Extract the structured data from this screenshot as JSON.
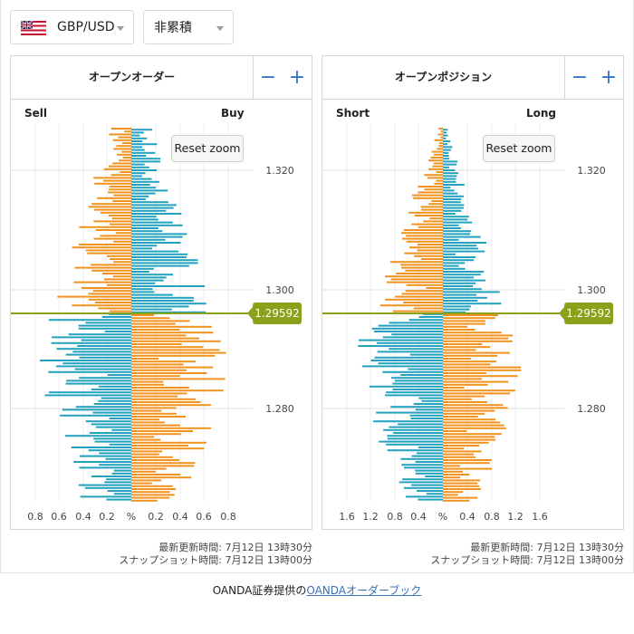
{
  "pair_select": {
    "value": "GBP/USD",
    "flag": "uk-flag-icon"
  },
  "mode_select": {
    "value": "非累積"
  },
  "colors": {
    "orange": "#f0921e",
    "teal": "#22a2bf",
    "price_line": "#8aa11a",
    "control": "#3573c4"
  },
  "orders": {
    "title": "オープンオーダー",
    "left_label": "Sell",
    "right_label": "Buy",
    "minus": "−",
    "plus": "+",
    "reset": "Reset zoom",
    "price_ticks": [
      "1.320",
      "1.300",
      "1.280"
    ],
    "x_ticks": [
      "0.8",
      "0.6",
      "0.4",
      "0.2",
      "%",
      "0.2",
      "0.4",
      "0.6",
      "0.8"
    ],
    "current_price": "1.29592",
    "updated": "最新更新時間: 7月12日 13時30分",
    "snapshot": "スナップショット時間: 7月12日 13時00分"
  },
  "positions": {
    "title": "オープンポジション",
    "left_label": "Short",
    "right_label": "Long",
    "minus": "−",
    "plus": "+",
    "reset": "Reset zoom",
    "price_ticks": [
      "1.320",
      "1.300",
      "1.280"
    ],
    "x_ticks": [
      "1.6",
      "1.2",
      "0.8",
      "0.4",
      "%",
      "0.4",
      "0.8",
      "1.2",
      "1.6"
    ],
    "current_price": "1.29592",
    "updated": "最新更新時間: 7月12日 13時30分",
    "snapshot": "スナップショット時間: 7月12日 13時00分"
  },
  "credit": {
    "prefix": "OANDA証券提供の",
    "link": "OANDAオーダーブック"
  }
}
